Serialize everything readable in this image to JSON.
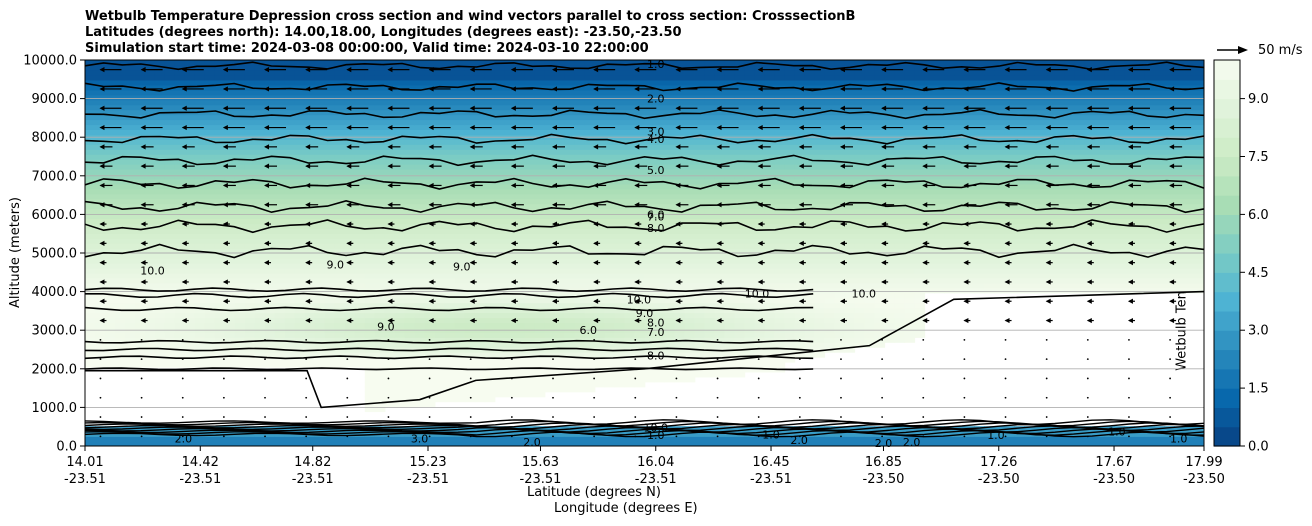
{
  "chart_data": {
    "type": "heatmap",
    "title_lines": [
      "Wetbulb Temperature Depression cross section and wind vectors parallel to cross section: CrosssectionB",
      "Latitudes (degrees north): 14.00,18.00, Longitudes (degrees east): -23.50,-23.50",
      "Simulation start time: 2024-03-08 00:00:00, Valid time: 2024-03-10 22:00:00"
    ],
    "ylabel": "Altitude (meters)",
    "xlabel": "Latitude (degrees N)",
    "xlabel2": "Longitude (degrees E)",
    "ylim": [
      0,
      10000
    ],
    "xlim": [
      14.01,
      17.99
    ],
    "y_ticks": [
      "0.0",
      "1000.0",
      "2000.0",
      "3000.0",
      "4000.0",
      "5000.0",
      "6000.0",
      "7000.0",
      "8000.0",
      "9000.0",
      "10000.0"
    ],
    "x_ticks": [
      {
        "lat": "14.01",
        "lon": "-23.51"
      },
      {
        "lat": "14.42",
        "lon": "-23.51"
      },
      {
        "lat": "14.82",
        "lon": "-23.51"
      },
      {
        "lat": "15.23",
        "lon": "-23.51"
      },
      {
        "lat": "15.63",
        "lon": "-23.51"
      },
      {
        "lat": "16.04",
        "lon": "-23.51"
      },
      {
        "lat": "16.45",
        "lon": "-23.51"
      },
      {
        "lat": "16.85",
        "lon": "-23.50"
      },
      {
        "lat": "17.26",
        "lon": "-23.50"
      },
      {
        "lat": "17.67",
        "lon": "-23.50"
      },
      {
        "lat": "17.99",
        "lon": "-23.50"
      }
    ],
    "grid_horizontal": true,
    "colorbar": {
      "label": "Wetbulb Temperature Depression ˚C",
      "min": 0,
      "max": 10,
      "ticks": [
        "0.0",
        "1.5",
        "3.0",
        "4.5",
        "6.0",
        "7.5",
        "9.0"
      ],
      "colormap": "GnBu_r"
    },
    "wind_key": {
      "label": "50 m/s"
    },
    "contour_labels": [
      {
        "text": "1.0",
        "lat": 16.04,
        "alt": 9900
      },
      {
        "text": "2.0",
        "lat": 16.04,
        "alt": 9000
      },
      {
        "text": "3.0",
        "lat": 16.04,
        "alt": 8150
      },
      {
        "text": "4.0",
        "lat": 16.04,
        "alt": 7950
      },
      {
        "text": "5.0",
        "lat": 16.04,
        "alt": 7150
      },
      {
        "text": "6.0",
        "lat": 16.04,
        "alt": 6000
      },
      {
        "text": "7.0",
        "lat": 16.04,
        "alt": 5950
      },
      {
        "text": "8.0",
        "lat": 16.04,
        "alt": 5650
      },
      {
        "text": "10.0",
        "lat": 14.25,
        "alt": 4550
      },
      {
        "text": "9.0",
        "lat": 14.9,
        "alt": 4700
      },
      {
        "text": "9.0",
        "lat": 15.35,
        "alt": 4650
      },
      {
        "text": "10.0",
        "lat": 15.98,
        "alt": 3800
      },
      {
        "text": "9.0",
        "lat": 16.0,
        "alt": 3450
      },
      {
        "text": "8.0",
        "lat": 16.04,
        "alt": 3200
      },
      {
        "text": "7.0",
        "lat": 16.04,
        "alt": 2950
      },
      {
        "text": "6.0",
        "lat": 15.8,
        "alt": 3000
      },
      {
        "text": "8.0",
        "lat": 16.04,
        "alt": 2350
      },
      {
        "text": "10.0",
        "lat": 16.4,
        "alt": 3950
      },
      {
        "text": "10.0",
        "lat": 16.78,
        "alt": 3950
      },
      {
        "text": "9.0",
        "lat": 15.08,
        "alt": 3100
      },
      {
        "text": "10.0",
        "lat": 16.04,
        "alt": 480
      },
      {
        "text": "1.0",
        "lat": 16.04,
        "alt": 280
      },
      {
        "text": "2.0",
        "lat": 14.36,
        "alt": 200
      },
      {
        "text": "3.0",
        "lat": 15.2,
        "alt": 200
      },
      {
        "text": "2.0",
        "lat": 15.6,
        "alt": 100
      },
      {
        "text": "1.0",
        "lat": 16.45,
        "alt": 300
      },
      {
        "text": "2.0",
        "lat": 16.55,
        "alt": 150
      },
      {
        "text": "2.0",
        "lat": 16.85,
        "alt": 80
      },
      {
        "text": "2.0",
        "lat": 16.95,
        "alt": 100
      },
      {
        "text": "1.0",
        "lat": 17.25,
        "alt": 280
      },
      {
        "text": "1.0",
        "lat": 17.68,
        "alt": 380
      },
      {
        "text": "1.0",
        "lat": 17.9,
        "alt": 200
      }
    ]
  }
}
